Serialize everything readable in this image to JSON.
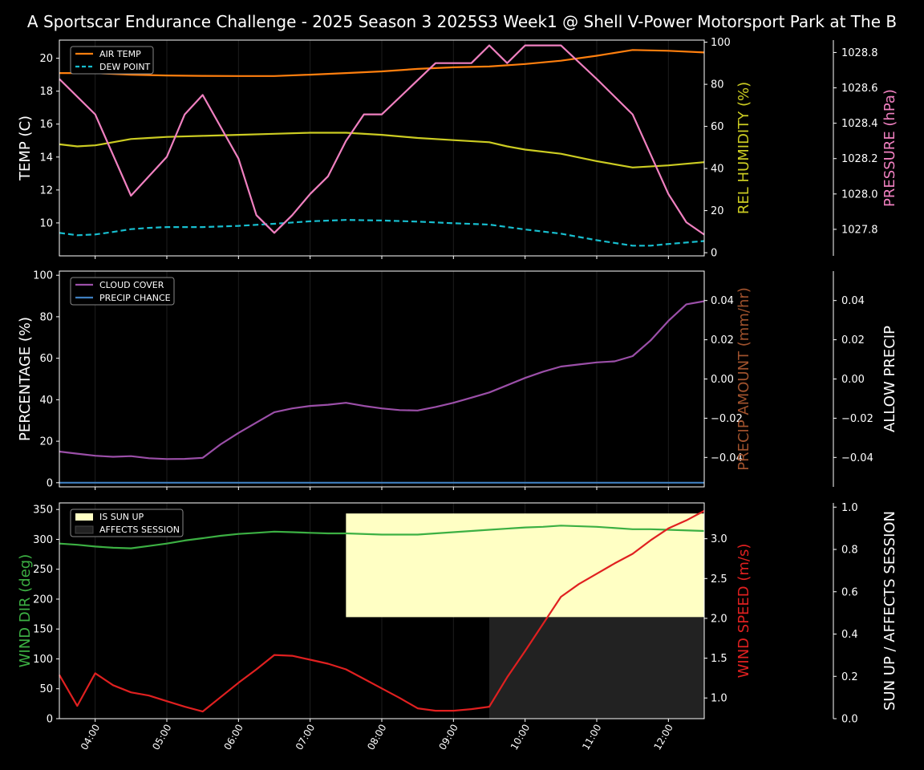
{
  "title": "A Sportscar Endurance Challenge - 2025 Season 3 2025S3 Week1 @ Shell V-Power Motorsport Park at The B",
  "colors": {
    "background": "#000000",
    "axis": "#ffffff",
    "air_temp": "#ff7f0e",
    "dew_point": "#17becf",
    "humidity": "#cccc22",
    "pressure": "#f080c0",
    "cloud_cover": "#9b4fa8",
    "precip_chance": "#3f7fc0",
    "precip_amount_label": "#a0522d",
    "wind_dir": "#3cb043",
    "wind_speed": "#e02020",
    "sun_up": "#ffffc4",
    "affects_session": "#222222"
  },
  "chart_data": [
    {
      "type": "line",
      "panel": "temperature",
      "x_ticks": [
        "04:00",
        "05:00",
        "06:00",
        "07:00",
        "08:00",
        "09:00",
        "10:00",
        "11:00",
        "12:00"
      ],
      "x_range": [
        "03:30",
        "12:30"
      ],
      "ylabel": "TEMP (C)",
      "ylim": [
        8.0,
        21.1
      ],
      "yticks": [
        "10",
        "12",
        "14",
        "16",
        "18",
        "20"
      ],
      "y2label": "REL HUMIDITY (%)",
      "y2lim": [
        -1.5,
        101
      ],
      "y2ticks": [
        "0",
        "20",
        "40",
        "60",
        "80",
        "100"
      ],
      "y3label": "PRESSURE (hPa)",
      "y3lim": [
        1027.65,
        1028.87
      ],
      "y3ticks": [
        "1027.8",
        "1028.0",
        "1028.2",
        "1028.4",
        "1028.6",
        "1028.8"
      ],
      "legend_position": "top-left",
      "legend": [
        "AIR TEMP",
        "DEW POINT"
      ],
      "series": [
        {
          "name": "AIR TEMP",
          "axis": "y",
          "style": "solid",
          "color_key": "air_temp",
          "x": [
            "03:30",
            "04:00",
            "04:30",
            "05:00",
            "05:30",
            "06:00",
            "06:30",
            "07:00",
            "07:30",
            "08:00",
            "08:30",
            "09:00",
            "09:30",
            "10:00",
            "10:30",
            "11:00",
            "11:30",
            "12:00",
            "12:30"
          ],
          "y": [
            19.1,
            19.1,
            19.0,
            18.95,
            18.93,
            18.92,
            18.92,
            19.0,
            19.1,
            19.2,
            19.35,
            19.45,
            19.5,
            19.65,
            19.85,
            20.15,
            20.5,
            20.45,
            20.35
          ]
        },
        {
          "name": "DEW POINT",
          "axis": "y",
          "style": "dashed",
          "color_key": "dew_point",
          "x": [
            "03:30",
            "03:45",
            "04:00",
            "04:15",
            "04:30",
            "04:45",
            "05:00",
            "05:30",
            "06:00",
            "06:30",
            "07:00",
            "07:30",
            "08:00",
            "08:30",
            "09:00",
            "09:30",
            "10:00",
            "10:30",
            "11:00",
            "11:30",
            "11:45",
            "12:00",
            "12:30"
          ],
          "y": [
            9.4,
            9.25,
            9.3,
            9.45,
            9.62,
            9.7,
            9.75,
            9.75,
            9.82,
            9.95,
            10.1,
            10.18,
            10.15,
            10.08,
            9.98,
            9.9,
            9.6,
            9.35,
            8.95,
            8.62,
            8.62,
            8.72,
            8.9
          ]
        },
        {
          "name": "REL HUMIDITY",
          "axis": "y2",
          "style": "solid",
          "color_key": "humidity",
          "x": [
            "03:30",
            "03:45",
            "04:00",
            "04:15",
            "04:30",
            "04:45",
            "05:00",
            "05:30",
            "06:00",
            "06:30",
            "07:00",
            "07:30",
            "08:00",
            "08:30",
            "09:00",
            "09:30",
            "09:45",
            "10:00",
            "10:30",
            "11:00",
            "11:30",
            "12:00",
            "12:30"
          ],
          "y": [
            51.5,
            50.5,
            51,
            52.5,
            54,
            54.5,
            55,
            55.5,
            56,
            56.5,
            57,
            57,
            56,
            54.5,
            53.5,
            52.5,
            50.5,
            49,
            47,
            43.5,
            40.5,
            41.5,
            43
          ]
        },
        {
          "name": "PRESSURE",
          "axis": "y3",
          "style": "solid",
          "color_key": "pressure",
          "x": [
            "03:30",
            "04:00",
            "04:30",
            "05:00",
            "05:15",
            "05:30",
            "06:00",
            "06:15",
            "06:30",
            "06:45",
            "07:00",
            "07:15",
            "07:30",
            "07:45",
            "08:00",
            "08:45",
            "09:00",
            "09:15",
            "09:30",
            "09:45",
            "10:00",
            "10:15",
            "10:30",
            "11:00",
            "11:30",
            "12:00",
            "12:15",
            "12:30"
          ],
          "y": [
            1028.65,
            1028.45,
            1027.99,
            1028.21,
            1028.45,
            1028.56,
            1028.2,
            1027.88,
            1027.78,
            1027.88,
            1028.0,
            1028.1,
            1028.3,
            1028.45,
            1028.45,
            1028.74,
            1028.74,
            1028.74,
            1028.84,
            1028.74,
            1028.84,
            1028.84,
            1028.84,
            1028.65,
            1028.45,
            1028.0,
            1027.84,
            1027.77
          ]
        }
      ]
    },
    {
      "type": "line",
      "panel": "precipitation",
      "x_ticks": [
        "04:00",
        "05:00",
        "06:00",
        "07:00",
        "08:00",
        "09:00",
        "10:00",
        "11:00",
        "12:00"
      ],
      "x_range": [
        "03:30",
        "12:30"
      ],
      "ylabel": "PERCENTAGE (%)",
      "ylim": [
        -2,
        102
      ],
      "yticks": [
        "0",
        "20",
        "40",
        "60",
        "80",
        "100"
      ],
      "y2label": "PRECIP AMOUNT (mm/hr)",
      "y2lim": [
        -0.055,
        0.055
      ],
      "y2ticks": [
        "−0.04",
        "−0.02",
        "0.00",
        "0.02",
        "0.04"
      ],
      "y3label": "ALLOW PRECIP",
      "y3ticks": [
        "−0.04",
        "−0.02",
        "0.00",
        "0.02",
        "0.04"
      ],
      "legend_position": "top-left",
      "legend": [
        "CLOUD COVER",
        "PRECIP CHANCE"
      ],
      "series": [
        {
          "name": "CLOUD COVER",
          "axis": "y",
          "style": "solid",
          "color_key": "cloud_cover",
          "x": [
            "03:30",
            "03:45",
            "04:00",
            "04:15",
            "04:30",
            "04:45",
            "05:00",
            "05:15",
            "05:30",
            "05:45",
            "06:00",
            "06:15",
            "06:30",
            "06:45",
            "07:00",
            "07:15",
            "07:30",
            "07:45",
            "08:00",
            "08:15",
            "08:30",
            "08:45",
            "09:00",
            "09:15",
            "09:30",
            "09:45",
            "10:00",
            "10:15",
            "10:30",
            "10:45",
            "11:00",
            "11:15",
            "11:30",
            "11:45",
            "12:00",
            "12:15",
            "12:30"
          ],
          "y": [
            15,
            14,
            13,
            12.5,
            12.8,
            11.8,
            11.4,
            11.5,
            12,
            18.5,
            24,
            29,
            34,
            35.8,
            37,
            37.6,
            38.5,
            37,
            35.8,
            35,
            34.8,
            36.5,
            38.5,
            41,
            43.5,
            47,
            50.5,
            53.5,
            56,
            57,
            58,
            58.5,
            61,
            68.5,
            78,
            86,
            87.5
          ]
        },
        {
          "name": "PRECIP CHANCE",
          "axis": "y",
          "style": "solid",
          "color_key": "precip_chance",
          "x": [
            "03:30",
            "12:30"
          ],
          "y": [
            0,
            0
          ]
        }
      ]
    },
    {
      "type": "line",
      "panel": "wind",
      "x_ticks": [
        "04:00",
        "05:00",
        "06:00",
        "07:00",
        "08:00",
        "09:00",
        "10:00",
        "11:00",
        "12:00"
      ],
      "x_range": [
        "03:30",
        "12:30"
      ],
      "ylabel": "WIND DIR (deg)",
      "ylim": [
        0,
        361
      ],
      "yticks": [
        "0",
        "50",
        "100",
        "150",
        "200",
        "250",
        "300",
        "350"
      ],
      "y2label": "WIND SPEED (m/s)",
      "y2lim": [
        0.74,
        3.45
      ],
      "y2ticks": [
        "1.0",
        "1.5",
        "2.0",
        "2.5",
        "3.0"
      ],
      "y3label": "SUN UP / AFFECTS SESSION",
      "y3lim": [
        0.0,
        1.02
      ],
      "y3ticks": [
        "0.0",
        "0.2",
        "0.4",
        "0.6",
        "0.8",
        "1.0"
      ],
      "legend_position": "top-left",
      "legend": [
        "IS SUN UP",
        "AFFECTS SESSION"
      ],
      "regions": [
        {
          "name": "IS SUN UP",
          "from": "07:30",
          "to": "12:30",
          "low": 0.48,
          "high": 0.97,
          "color_key": "sun_up"
        },
        {
          "name": "AFFECTS SESSION",
          "from": "09:30",
          "to": "12:30",
          "low": 0.0,
          "high": 0.48,
          "color_key": "affects_session"
        }
      ],
      "series": [
        {
          "name": "WIND DIR",
          "axis": "y",
          "style": "solid",
          "color_key": "wind_dir",
          "x": [
            "03:30",
            "03:45",
            "04:00",
            "04:15",
            "04:30",
            "04:45",
            "05:00",
            "05:15",
            "05:30",
            "05:45",
            "06:00",
            "06:15",
            "06:30",
            "06:45",
            "07:00",
            "07:15",
            "07:30",
            "08:00",
            "08:30",
            "09:00",
            "09:30",
            "10:00",
            "10:15",
            "10:30",
            "11:00",
            "11:30",
            "11:45",
            "12:00",
            "12:30"
          ],
          "y": [
            293,
            291,
            288,
            286,
            285,
            289,
            293,
            298,
            302,
            306,
            309,
            311,
            313,
            312,
            311,
            310,
            310,
            308,
            308,
            312,
            316,
            320,
            321,
            323,
            321,
            317,
            317,
            316,
            314
          ]
        },
        {
          "name": "WIND SPEED",
          "axis": "y2",
          "style": "solid",
          "color_key": "wind_speed",
          "x": [
            "03:30",
            "03:45",
            "04:00",
            "04:15",
            "04:30",
            "04:45",
            "05:00",
            "05:15",
            "05:30",
            "05:45",
            "06:00",
            "06:15",
            "06:30",
            "06:45",
            "07:00",
            "07:15",
            "07:30",
            "07:45",
            "08:00",
            "08:15",
            "08:30",
            "08:45",
            "09:00",
            "09:15",
            "09:30",
            "09:45",
            "10:00",
            "10:15",
            "10:30",
            "10:45",
            "11:00",
            "11:15",
            "11:30",
            "11:45",
            "12:00",
            "12:15",
            "12:30"
          ],
          "y": [
            1.29,
            0.9,
            1.31,
            1.16,
            1.07,
            1.03,
            0.96,
            0.89,
            0.83,
            1.01,
            1.19,
            1.36,
            1.54,
            1.53,
            1.48,
            1.43,
            1.36,
            1.24,
            1.12,
            1.0,
            0.87,
            0.84,
            0.84,
            0.86,
            0.89,
            1.26,
            1.59,
            1.93,
            2.27,
            2.43,
            2.56,
            2.69,
            2.81,
            2.98,
            3.13,
            3.23,
            3.35
          ]
        }
      ]
    }
  ]
}
